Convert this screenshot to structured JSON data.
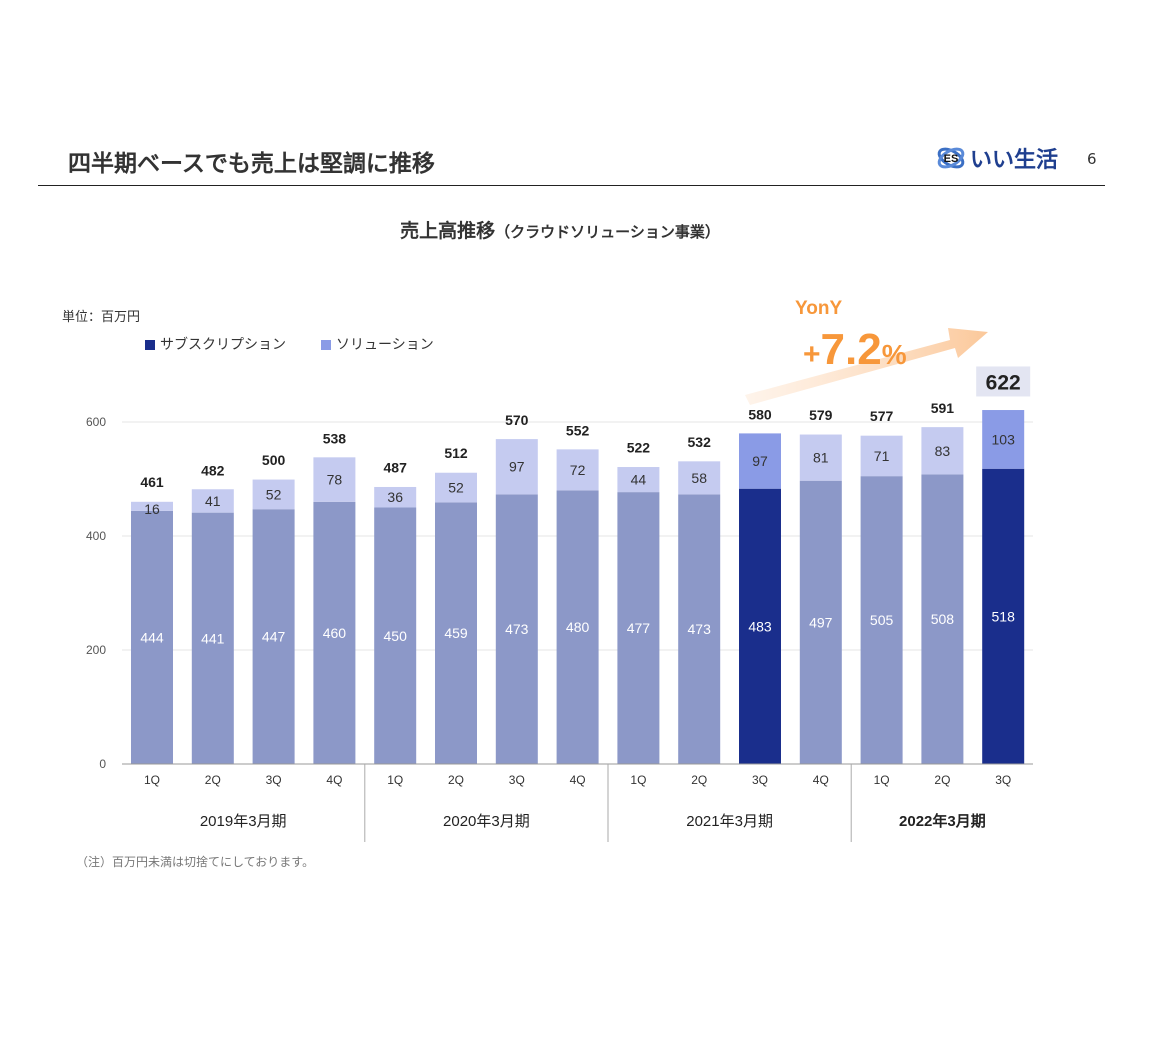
{
  "header": {
    "title": "四半期ベースでも売上は堅調に推移",
    "logo_text": "いい生活",
    "logo_mark": "ES",
    "page_number": "6"
  },
  "note": "（注）百万円未満は切捨てにしております。",
  "chart_data": {
    "type": "bar",
    "stacked": true,
    "title": "売上高推移",
    "subtitle": "（クラウドソリューション事業）",
    "unit_label": "単位：百万円",
    "ylim": [
      0,
      700
    ],
    "yticks": [
      0,
      200,
      400,
      600
    ],
    "grid": true,
    "legend": [
      "サブスクリプション",
      "ソリューション"
    ],
    "legend_placement": "top-left",
    "categories": [
      "1Q",
      "2Q",
      "3Q",
      "4Q",
      "1Q",
      "2Q",
      "3Q",
      "4Q",
      "1Q",
      "2Q",
      "3Q",
      "4Q",
      "1Q",
      "2Q",
      "3Q"
    ],
    "groups": [
      {
        "label": "2019年3月期",
        "count": 4,
        "bold": false
      },
      {
        "label": "2020年3月期",
        "count": 4,
        "bold": false
      },
      {
        "label": "2021年3月期",
        "count": 4,
        "bold": false
      },
      {
        "label": "2022年3月期",
        "count": 3,
        "bold": true
      }
    ],
    "series": [
      {
        "name": "サブスクリプション",
        "values": [
          444,
          441,
          447,
          460,
          450,
          459,
          473,
          480,
          477,
          473,
          483,
          497,
          505,
          508,
          518
        ]
      },
      {
        "name": "ソリューション",
        "values": [
          16,
          41,
          52,
          78,
          36,
          52,
          97,
          72,
          44,
          58,
          97,
          81,
          71,
          83,
          103
        ]
      }
    ],
    "totals": [
      461,
      482,
      500,
      538,
      487,
      512,
      570,
      552,
      522,
      532,
      580,
      579,
      577,
      591,
      622
    ],
    "highlighted_indices": [
      10,
      14
    ],
    "colors": {
      "sub": "#8c98c8",
      "sol": "#c5cbf0",
      "sub_hl": "#1a2e8c",
      "sol_hl": "#8a9be6",
      "accent": "#f7973a"
    },
    "annotation": {
      "label": "YonY",
      "value": "+7.2",
      "suffix": "%"
    }
  }
}
